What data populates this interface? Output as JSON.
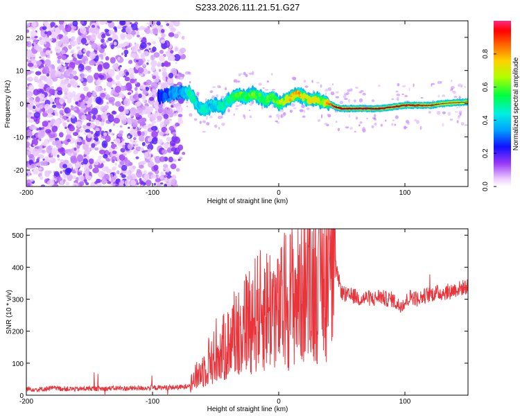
{
  "title": "S233.2026.111.21.51.G27",
  "chart_data": [
    {
      "type": "heatmap",
      "name": "spectrogram",
      "xlabel": "Height of straight line (km)",
      "ylabel": "Frequency (Hz)",
      "xlim": [
        -200,
        150
      ],
      "ylim": [
        -25,
        25
      ],
      "xticks": [
        -200,
        -100,
        0,
        100
      ],
      "yticks": [
        -20,
        -10,
        0,
        10,
        20
      ],
      "colorbar": {
        "label": "Normalized spectral amplitude",
        "range": [
          0.0,
          1.0
        ],
        "ticks": [
          0.0,
          0.2,
          0.4,
          0.6,
          0.8
        ],
        "tick_labels": [
          "0.0",
          "0.2",
          "0.4",
          "0.6",
          "0.8"
        ]
      },
      "ridge": {
        "x": [
          -95,
          -85,
          -75,
          -70,
          -65,
          -60,
          -55,
          -50,
          -45,
          -40,
          -35,
          -30,
          -25,
          -20,
          -15,
          -10,
          -5,
          0,
          5,
          10,
          15,
          20,
          25,
          30,
          35,
          40,
          45,
          50,
          60,
          70,
          80,
          90,
          100,
          110,
          120,
          130,
          140,
          150
        ],
        "frequency_hz": [
          2,
          3,
          3.5,
          3,
          0,
          -2,
          -1,
          0,
          -1,
          1,
          2,
          2.5,
          2,
          3,
          2,
          1,
          2,
          0,
          1,
          2,
          3,
          2,
          1,
          1.5,
          0.5,
          0,
          -1,
          -1.5,
          -1.5,
          -1.5,
          -1.5,
          -1,
          -0.5,
          -0.5,
          -0.5,
          0,
          0.3,
          0.5
        ],
        "amplitude": [
          0.25,
          0.3,
          0.35,
          0.5,
          0.4,
          0.45,
          0.4,
          0.4,
          0.45,
          0.45,
          0.55,
          0.6,
          0.55,
          0.6,
          0.55,
          0.55,
          0.6,
          0.6,
          0.7,
          0.75,
          0.8,
          0.7,
          0.7,
          0.7,
          0.6,
          0.85,
          0.9,
          0.95,
          0.95,
          0.95,
          0.95,
          0.9,
          0.9,
          0.9,
          0.85,
          0.8,
          0.75,
          0.7
        ]
      }
    },
    {
      "type": "line",
      "name": "snr",
      "xlabel": "Height of straight line (km)",
      "ylabel": "SNR (10 * v/v)",
      "xlim": [
        -200,
        150
      ],
      "ylim": [
        0,
        520
      ],
      "xticks": [
        -200,
        -100,
        0,
        100
      ],
      "yticks": [
        0,
        100,
        200,
        300,
        400,
        500
      ],
      "color": "#e8343a",
      "series": [
        {
          "name": "SNR",
          "x": [
            -200,
            -190,
            -180,
            -170,
            -160,
            -150,
            -140,
            -130,
            -120,
            -110,
            -100,
            -90,
            -80,
            -75,
            -70,
            -65,
            -60,
            -55,
            -50,
            -45,
            -40,
            -35,
            -30,
            -25,
            -20,
            -15,
            -10,
            -5,
            0,
            5,
            10,
            15,
            20,
            25,
            30,
            35,
            40,
            45,
            50,
            55,
            60,
            65,
            70,
            75,
            80,
            85,
            90,
            95,
            100,
            105,
            110,
            115,
            120,
            125,
            130,
            135,
            140,
            145,
            150
          ],
          "values": [
            20,
            18,
            22,
            20,
            19,
            21,
            20,
            22,
            21,
            22,
            23,
            24,
            25,
            25,
            35,
            60,
            80,
            110,
            120,
            140,
            160,
            190,
            210,
            230,
            250,
            260,
            270,
            280,
            250,
            300,
            310,
            320,
            350,
            330,
            370,
            380,
            390,
            400,
            320,
            310,
            310,
            300,
            305,
            300,
            310,
            300,
            300,
            280,
            290,
            310,
            300,
            310,
            315,
            320,
            320,
            325,
            330,
            335,
            340
          ]
        }
      ]
    }
  ]
}
